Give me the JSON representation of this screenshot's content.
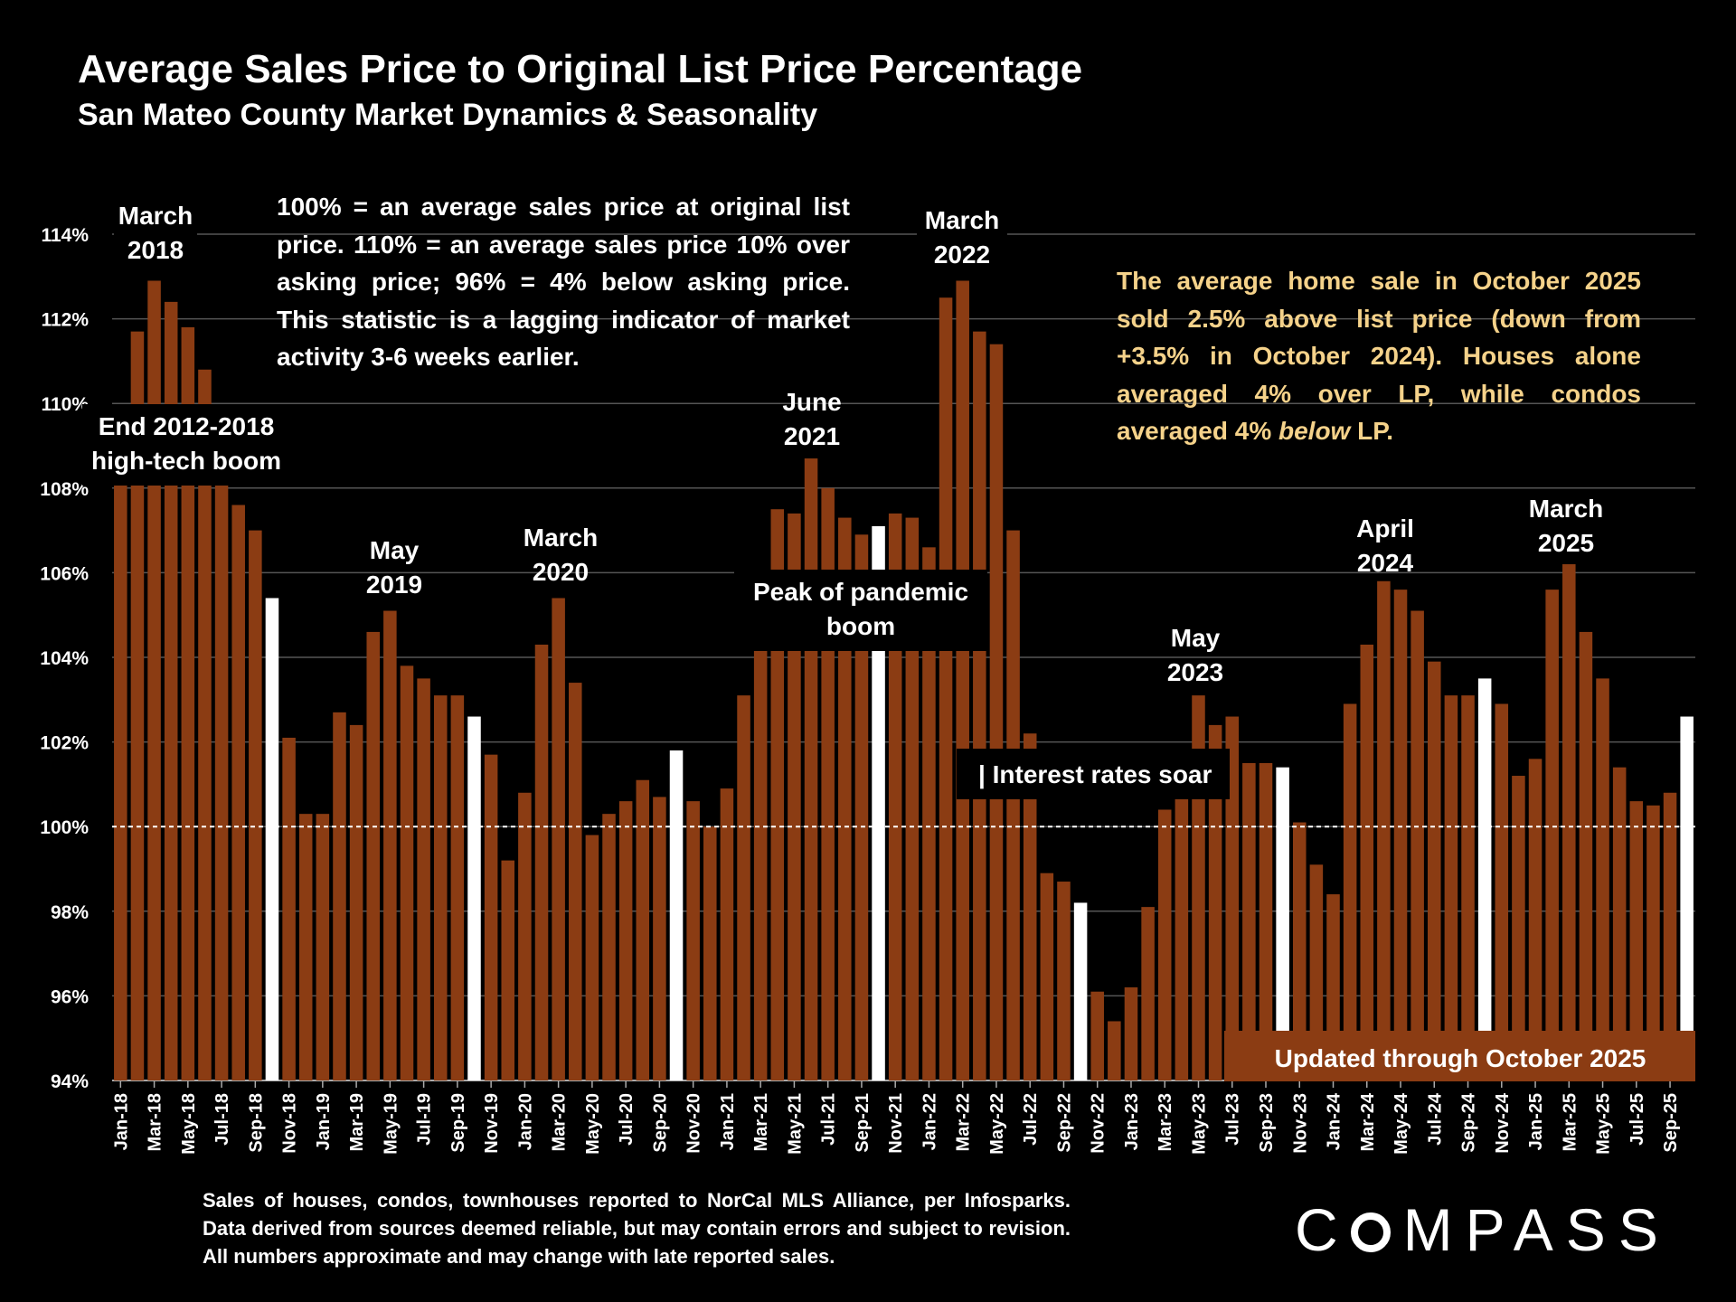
{
  "header": {
    "title": "Average Sales Price to Original List Price Percentage",
    "subtitle": "San Mateo County Market Dynamics & Seasonality"
  },
  "notes": {
    "definition": "100% = an average sales price at original list price. 110% = an average sales price 10% over asking price; 96% = 4% below asking price. This statistic is a lagging indicator of market activity 3-6 weeks earlier.",
    "summary": "The average home sale in October 2025 sold 2.5% above list price (down from +3.5% in October 2024). Houses alone averaged 4% over LP, while condos averaged 4% below LP.",
    "summary_italic": "below"
  },
  "footer": {
    "source": "Sales of houses, condos, townhouses reported to NorCal MLS Alliance, per Infosparks. Data derived from sources deemed reliable, but may contain errors and subject to revision. All numbers approximate and may change with late reported sales.",
    "brand": "COMPASS"
  },
  "colors": {
    "background": "#000000",
    "bar": "#8b3c13",
    "highlight_bar": "#ffffff",
    "summary_text": "#f5d28a",
    "updated_box": "#8b3c13"
  },
  "chart_data": {
    "type": "bar",
    "categories": [
      "Jan-18",
      "Feb-18",
      "Mar-18",
      "Apr-18",
      "May-18",
      "Jun-18",
      "Jul-18",
      "Aug-18",
      "Sep-18",
      "Oct-18",
      "Nov-18",
      "Dec-18",
      "Jan-19",
      "Feb-19",
      "Mar-19",
      "Apr-19",
      "May-19",
      "Jun-19",
      "Jul-19",
      "Aug-19",
      "Sep-19",
      "Oct-19",
      "Nov-19",
      "Dec-19",
      "Jan-20",
      "Feb-20",
      "Mar-20",
      "Apr-20",
      "May-20",
      "Jun-20",
      "Jul-20",
      "Aug-20",
      "Sep-20",
      "Oct-20",
      "Nov-20",
      "Dec-20",
      "Jan-21",
      "Feb-21",
      "Mar-21",
      "Apr-21",
      "May-21",
      "Jun-21",
      "Jul-21",
      "Aug-21",
      "Sep-21",
      "Oct-21",
      "Nov-21",
      "Dec-21",
      "Jan-22",
      "Feb-22",
      "Mar-22",
      "Apr-22",
      "May-22",
      "Jun-22",
      "Jul-22",
      "Aug-22",
      "Sep-22",
      "Oct-22",
      "Nov-22",
      "Dec-22",
      "Jan-23",
      "Feb-23",
      "Mar-23",
      "Apr-23",
      "May-23",
      "Jun-23",
      "Jul-23",
      "Aug-23",
      "Sep-23",
      "Oct-23",
      "Nov-23",
      "Dec-23",
      "Jan-24",
      "Feb-24",
      "Mar-24",
      "Apr-24",
      "May-24",
      "Jun-24",
      "Jul-24",
      "Aug-24",
      "Sep-24",
      "Oct-24",
      "Nov-24",
      "Dec-24",
      "Jan-25",
      "Feb-25",
      "Mar-25",
      "Apr-25",
      "May-25",
      "Jun-25",
      "Jul-25",
      "Aug-25",
      "Sep-25",
      "Oct-25"
    ],
    "xtick_labels": [
      "Jan-18",
      "Mar-18",
      "May-18",
      "Jul-18",
      "Sep-18",
      "Nov-18",
      "Jan-19",
      "Mar-19",
      "May-19",
      "Jul-19",
      "Sep-19",
      "Nov-19",
      "Jan-20",
      "Mar-20",
      "May-20",
      "Jul-20",
      "Sep-20",
      "Nov-20",
      "Jan-21",
      "Mar-21",
      "May-21",
      "Jul-21",
      "Sep-21",
      "Nov-21",
      "Jan-22",
      "Mar-22",
      "May-22",
      "Jul-22",
      "Sep-22",
      "Nov-22",
      "Jan-23",
      "Mar-23",
      "May-23",
      "Jul-23",
      "Sep-23",
      "Nov-23",
      "Jan-24",
      "Mar-24",
      "May-24",
      "Jul-24",
      "Sep-24",
      "Nov-24",
      "Jan-25",
      "Mar-25",
      "May-25",
      "Jul-25",
      "Sep-25"
    ],
    "values": [
      109.5,
      111.7,
      112.9,
      112.4,
      111.8,
      110.8,
      108.9,
      107.6,
      107.0,
      105.4,
      102.1,
      100.3,
      100.3,
      102.7,
      102.4,
      104.6,
      105.1,
      103.8,
      103.5,
      103.1,
      103.1,
      102.6,
      101.7,
      99.2,
      100.8,
      104.3,
      105.4,
      103.4,
      99.8,
      100.3,
      100.6,
      101.1,
      100.7,
      101.8,
      100.6,
      100.0,
      100.9,
      103.1,
      104.4,
      107.5,
      107.4,
      108.7,
      108.0,
      107.3,
      106.9,
      107.1,
      107.4,
      107.3,
      106.6,
      112.5,
      112.9,
      111.7,
      111.4,
      107.0,
      102.2,
      98.9,
      98.7,
      98.2,
      96.1,
      95.4,
      96.2,
      98.1,
      100.4,
      101.7,
      103.1,
      102.4,
      102.6,
      101.5,
      101.5,
      101.4,
      100.1,
      99.1,
      98.4,
      102.9,
      104.3,
      105.8,
      105.6,
      105.1,
      103.9,
      103.1,
      103.1,
      103.5,
      102.9,
      101.2,
      101.6,
      105.6,
      106.2,
      104.6,
      103.5,
      101.4,
      100.6,
      100.5,
      100.8,
      102.6
    ],
    "highlight_categories": [
      "Oct-18",
      "Oct-19",
      "Oct-20",
      "Oct-21",
      "Oct-22",
      "Oct-23",
      "Oct-24",
      "Oct-25"
    ],
    "reference_line": 100,
    "yticks": [
      "94%",
      "96%",
      "98%",
      "100%",
      "102%",
      "104%",
      "106%",
      "108%",
      "110%",
      "112%",
      "114%"
    ],
    "ylim": [
      94,
      114
    ],
    "grid": true,
    "annotations": {
      "march_2018": [
        "March",
        "2018"
      ],
      "boom_end": [
        "End 2012-2018",
        "high-tech boom"
      ],
      "may_2019": [
        "May",
        "2019"
      ],
      "march_2020": [
        "March",
        "2020"
      ],
      "june_2021": [
        "June",
        "2021"
      ],
      "pandemic_peak": [
        "Peak of pandemic",
        "boom"
      ],
      "march_2022": [
        "March",
        "2022"
      ],
      "interest_rates": "| Interest rates soar",
      "may_2023": [
        "May",
        "2023"
      ],
      "april_2024": [
        "April",
        "2024"
      ],
      "march_2025": [
        "March",
        "2025"
      ],
      "updated": "Updated through October 2025"
    }
  }
}
